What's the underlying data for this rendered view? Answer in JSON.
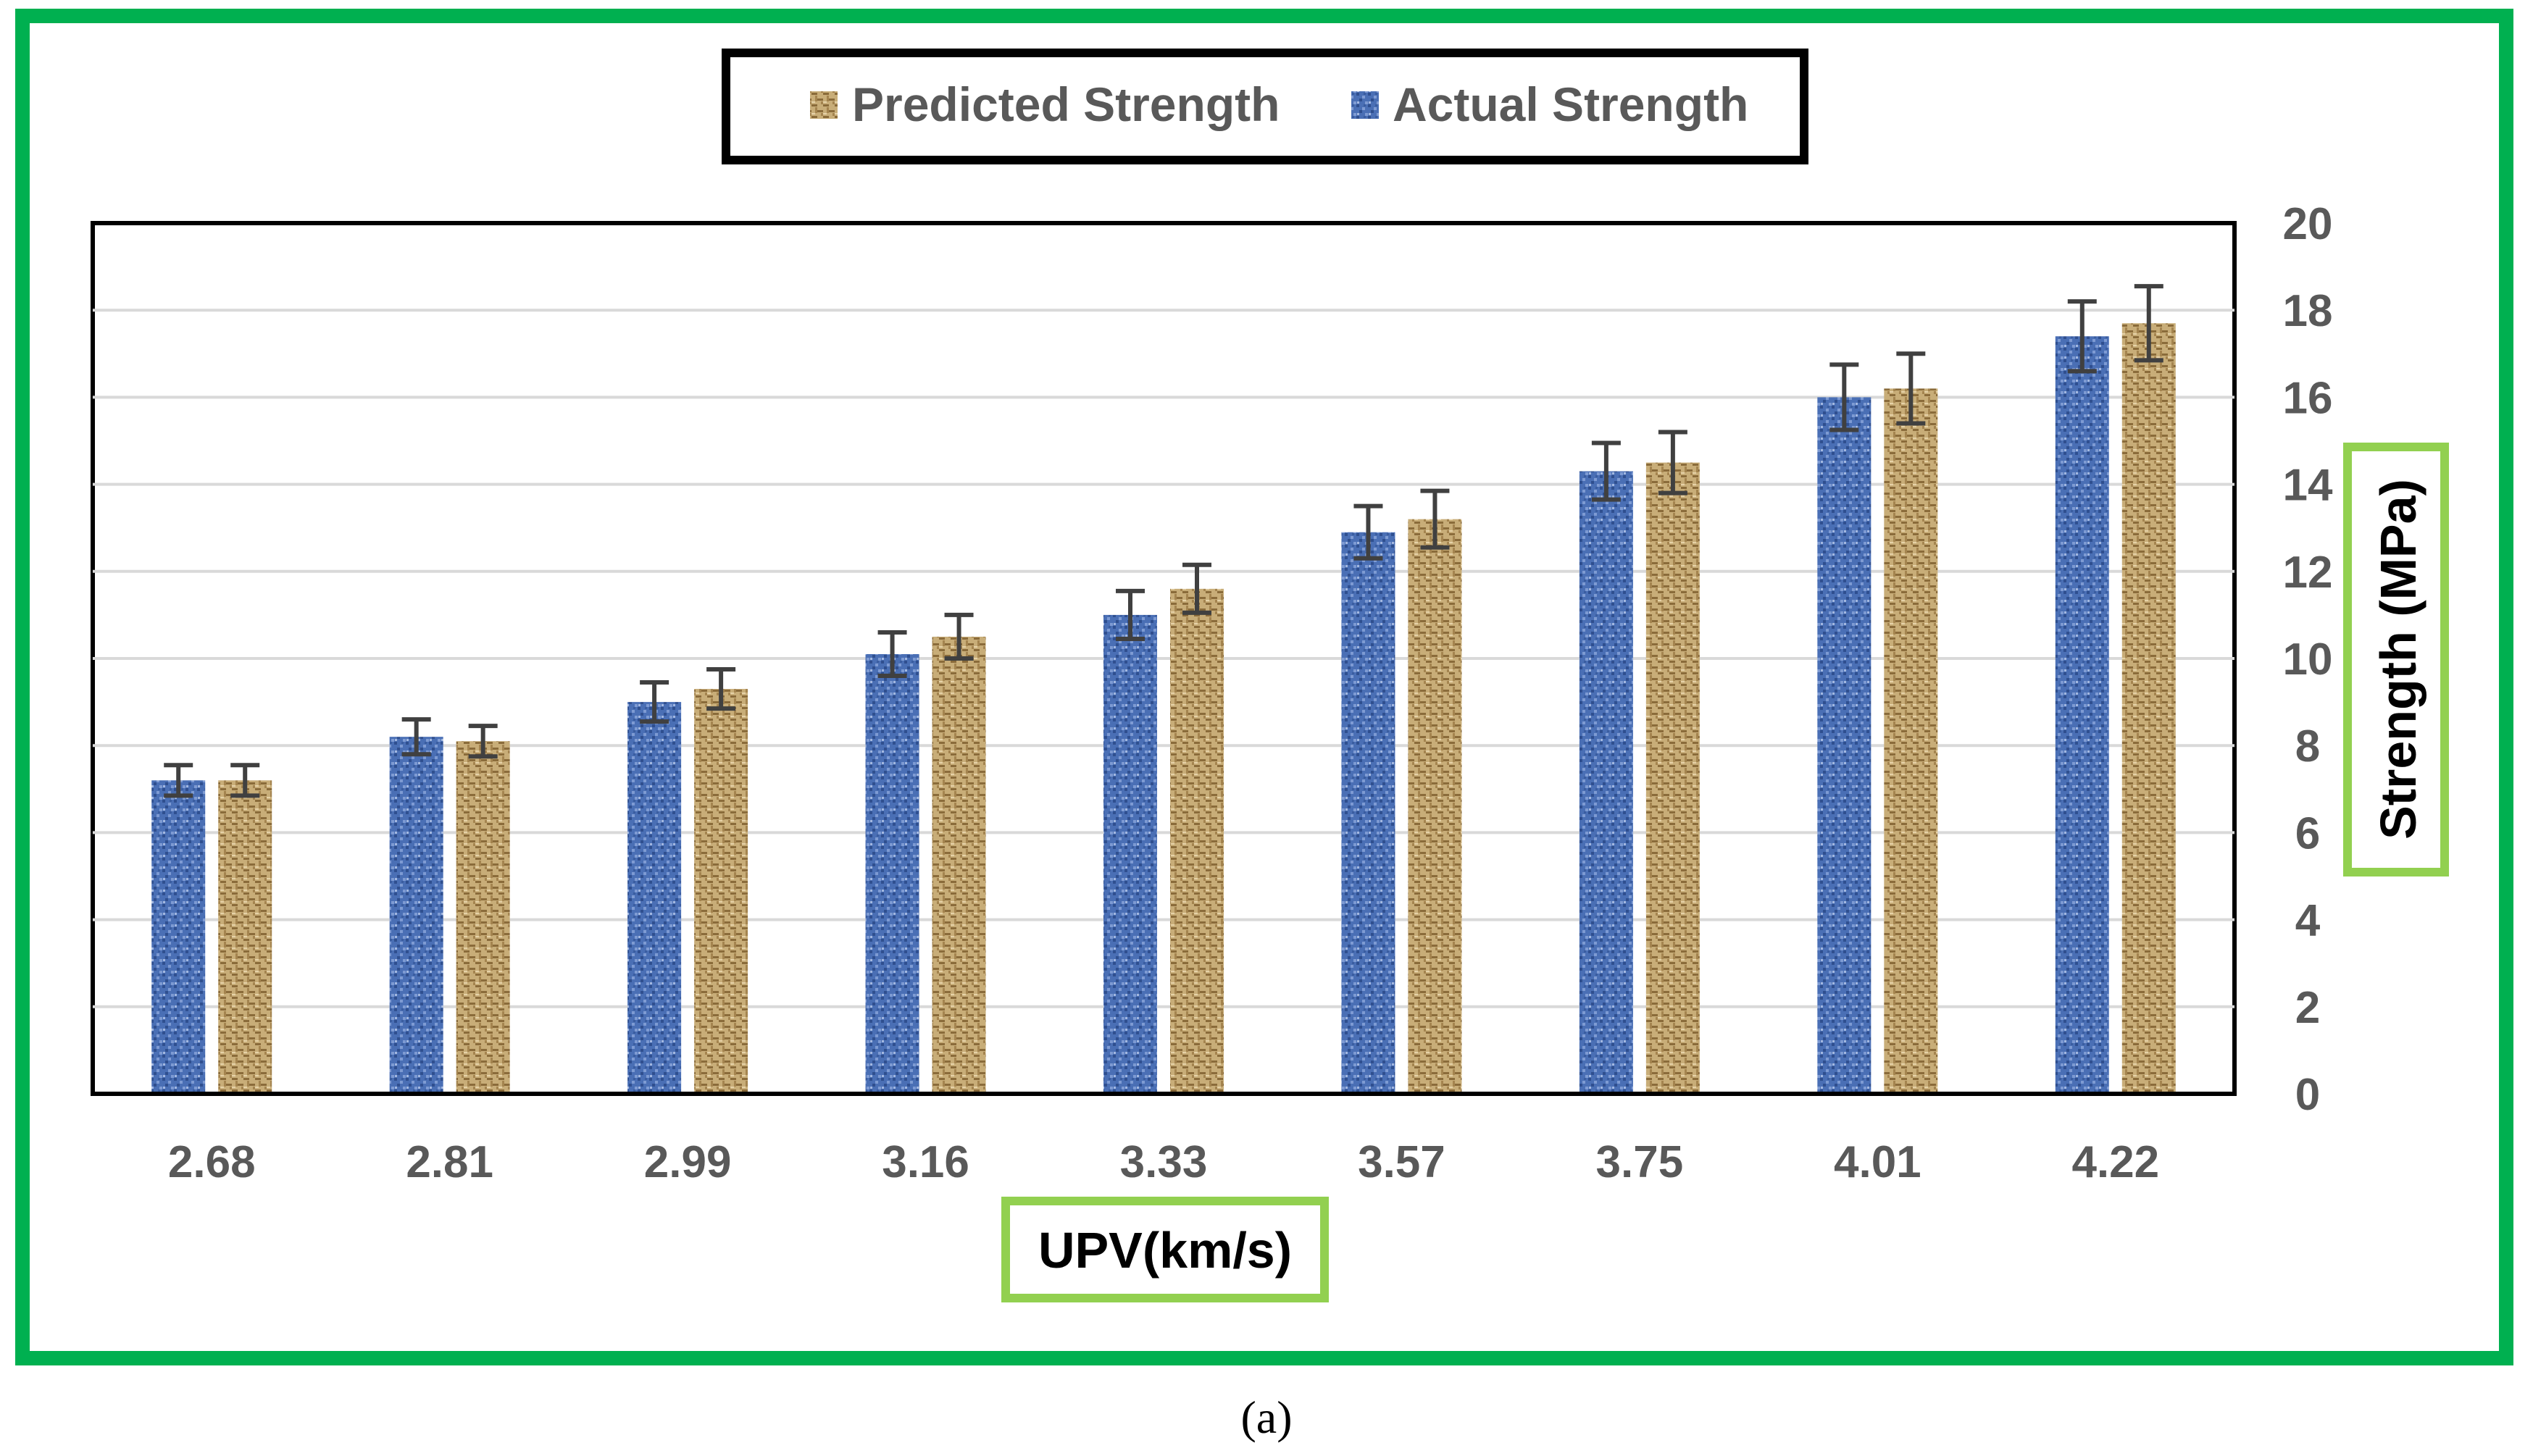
{
  "colors": {
    "frame": "#00B050",
    "title_box": "#92D050",
    "actual": "#4A6FB5",
    "predicted": "#B79A63",
    "grid": "#D9D9D9",
    "error_bar": "#404040"
  },
  "legend": {
    "predicted_label": "Predicted Strength",
    "actual_label": "Actual Strength"
  },
  "caption": "(a)",
  "chart_data": {
    "type": "bar",
    "xlabel": "UPV(km/s)",
    "ylabel": "Strength (MPa)",
    "ylim": [
      0,
      20
    ],
    "yticks": [
      0,
      2,
      4,
      6,
      8,
      10,
      12,
      14,
      16,
      18,
      20
    ],
    "ytick_labels": [
      "0",
      "2",
      "4",
      "6",
      "8",
      "10",
      "12",
      "14",
      "16",
      "18",
      "20"
    ],
    "y_axis_position": "right",
    "grid": true,
    "legend_position": "top",
    "categories": [
      "2.68",
      "2.81",
      "2.99",
      "3.16",
      "3.33",
      "3.57",
      "3.75",
      "4.01",
      "4.22"
    ],
    "series": [
      {
        "name": "Actual Strength",
        "values": [
          7.2,
          8.2,
          9.0,
          10.1,
          11.0,
          12.9,
          14.3,
          16.0,
          17.4
        ],
        "error": [
          0.35,
          0.4,
          0.45,
          0.5,
          0.55,
          0.6,
          0.65,
          0.75,
          0.8
        ]
      },
      {
        "name": "Predicted Strength",
        "values": [
          7.2,
          8.1,
          9.3,
          10.5,
          11.6,
          13.2,
          14.5,
          16.2,
          17.7
        ],
        "error": [
          0.35,
          0.35,
          0.45,
          0.5,
          0.55,
          0.65,
          0.7,
          0.8,
          0.85
        ]
      }
    ]
  }
}
